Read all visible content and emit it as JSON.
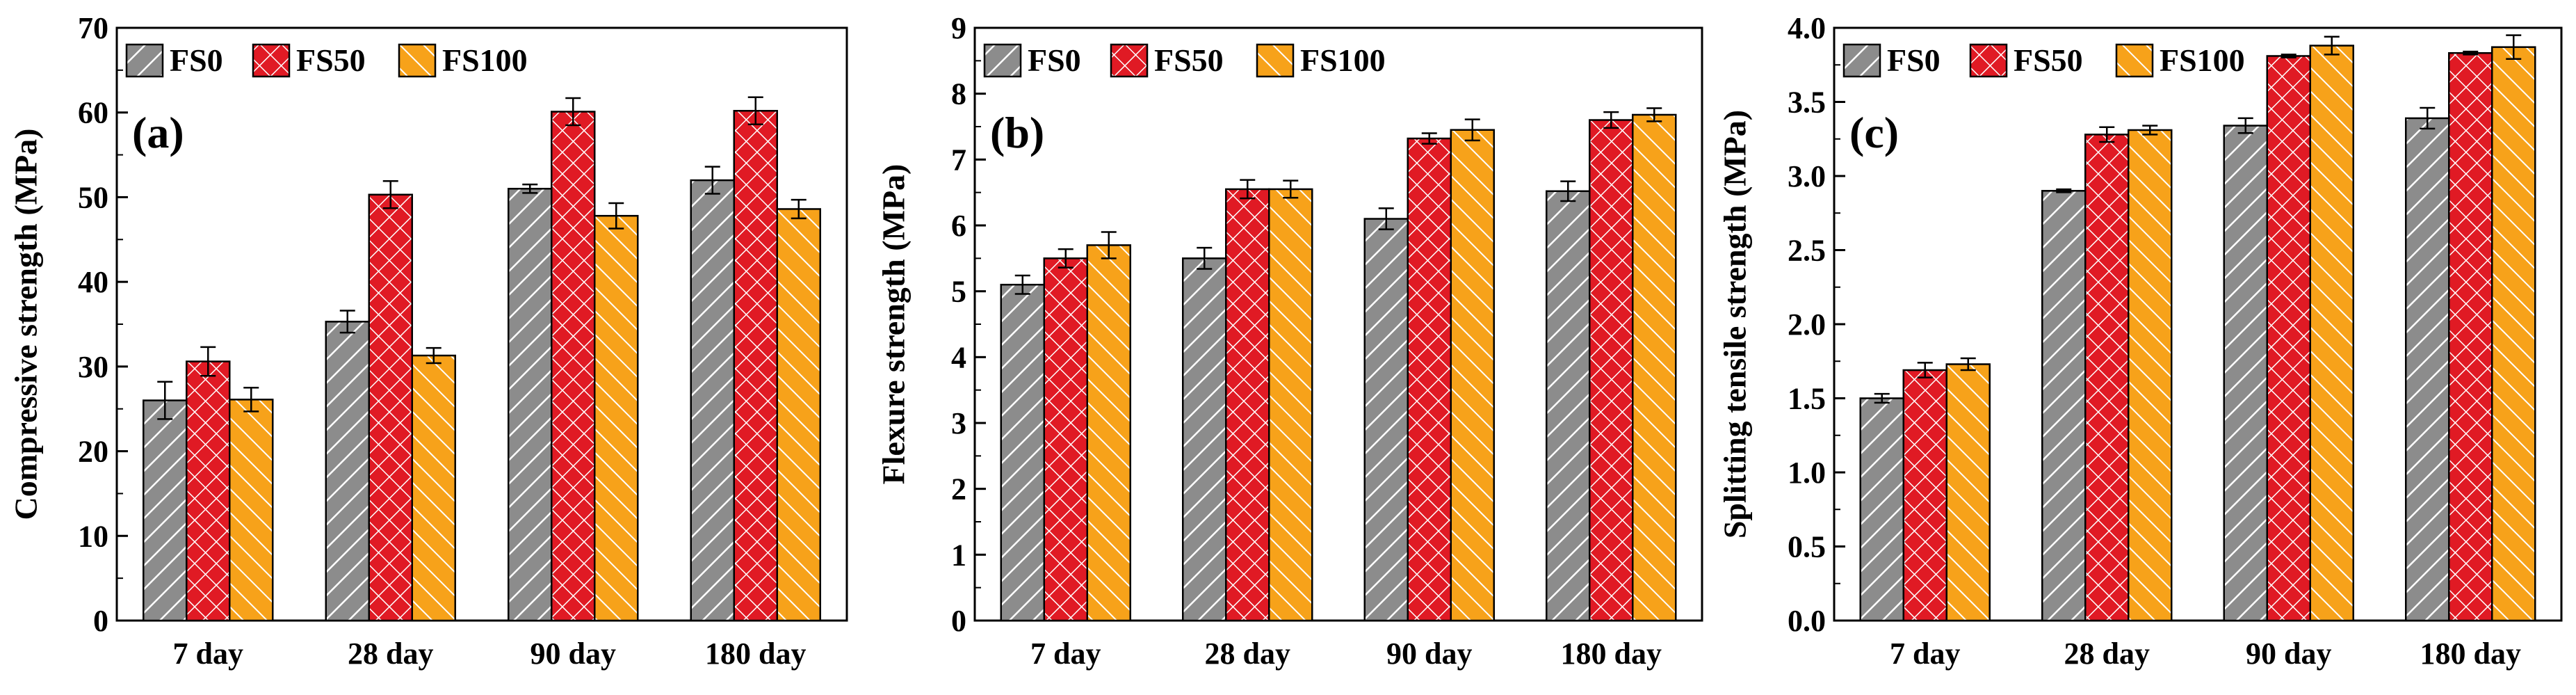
{
  "chart_data": [
    {
      "type": "bar",
      "panel_label": "(a)",
      "ylabel": "Compressive strength (MPa)",
      "ylim": [
        0,
        70
      ],
      "yticks": [
        0,
        10,
        20,
        30,
        40,
        50,
        60,
        70
      ],
      "categories": [
        "7 day",
        "28 day",
        "90 day",
        "180 day"
      ],
      "series": [
        {
          "name": "FS0",
          "values": [
            26.0,
            35.3,
            51.0,
            52.0
          ],
          "errors": [
            2.2,
            1.3,
            0.5,
            1.6
          ]
        },
        {
          "name": "FS50",
          "values": [
            30.6,
            50.3,
            60.1,
            60.2
          ],
          "errors": [
            1.7,
            1.6,
            1.6,
            1.6
          ]
        },
        {
          "name": "FS100",
          "values": [
            26.1,
            31.3,
            47.8,
            48.6
          ],
          "errors": [
            1.4,
            0.9,
            1.5,
            1.1
          ]
        }
      ],
      "legend": "top-left"
    },
    {
      "type": "bar",
      "panel_label": "(b)",
      "ylabel": "Flexure strength (MPa)",
      "ylim": [
        0,
        9
      ],
      "yticks": [
        0,
        1,
        2,
        3,
        4,
        5,
        6,
        7,
        8,
        9
      ],
      "categories": [
        "7 day",
        "28 day",
        "90 day",
        "180 day"
      ],
      "series": [
        {
          "name": "FS0",
          "values": [
            5.1,
            5.5,
            6.1,
            6.52
          ],
          "errors": [
            0.14,
            0.16,
            0.16,
            0.15
          ]
        },
        {
          "name": "FS50",
          "values": [
            5.5,
            6.55,
            7.32,
            7.6
          ],
          "errors": [
            0.14,
            0.14,
            0.08,
            0.12
          ]
        },
        {
          "name": "FS100",
          "values": [
            5.7,
            6.55,
            7.45,
            7.68
          ],
          "errors": [
            0.2,
            0.13,
            0.16,
            0.1
          ]
        }
      ],
      "legend": "top-left"
    },
    {
      "type": "bar",
      "panel_label": "(c)",
      "ylabel": "Splitting tensile strength (MPa)",
      "ylim": [
        0,
        4.0
      ],
      "yticks": [
        "0.0",
        "0.5",
        "1.0",
        "1.5",
        "2.0",
        "2.5",
        "3.0",
        "3.5",
        "4.0"
      ],
      "categories": [
        "7 day",
        "28 day",
        "90 day",
        "180 day"
      ],
      "series": [
        {
          "name": "FS0",
          "values": [
            1.5,
            2.9,
            3.34,
            3.39
          ],
          "errors": [
            0.03,
            0.01,
            0.05,
            0.07
          ]
        },
        {
          "name": "FS50",
          "values": [
            1.69,
            3.28,
            3.81,
            3.83
          ],
          "errors": [
            0.05,
            0.05,
            0.01,
            0.01
          ]
        },
        {
          "name": "FS100",
          "values": [
            1.73,
            3.31,
            3.88,
            3.87
          ],
          "errors": [
            0.04,
            0.03,
            0.06,
            0.08
          ]
        }
      ],
      "legend": "top-left"
    }
  ],
  "colors": {
    "FS0": "#8c8c8c",
    "FS50": "#e01a24",
    "FS100": "#f7a21a",
    "FS0_hatch": "#ffffff",
    "FS50_hatch": "#ffffff",
    "FS100_hatch": "#ffffff"
  }
}
